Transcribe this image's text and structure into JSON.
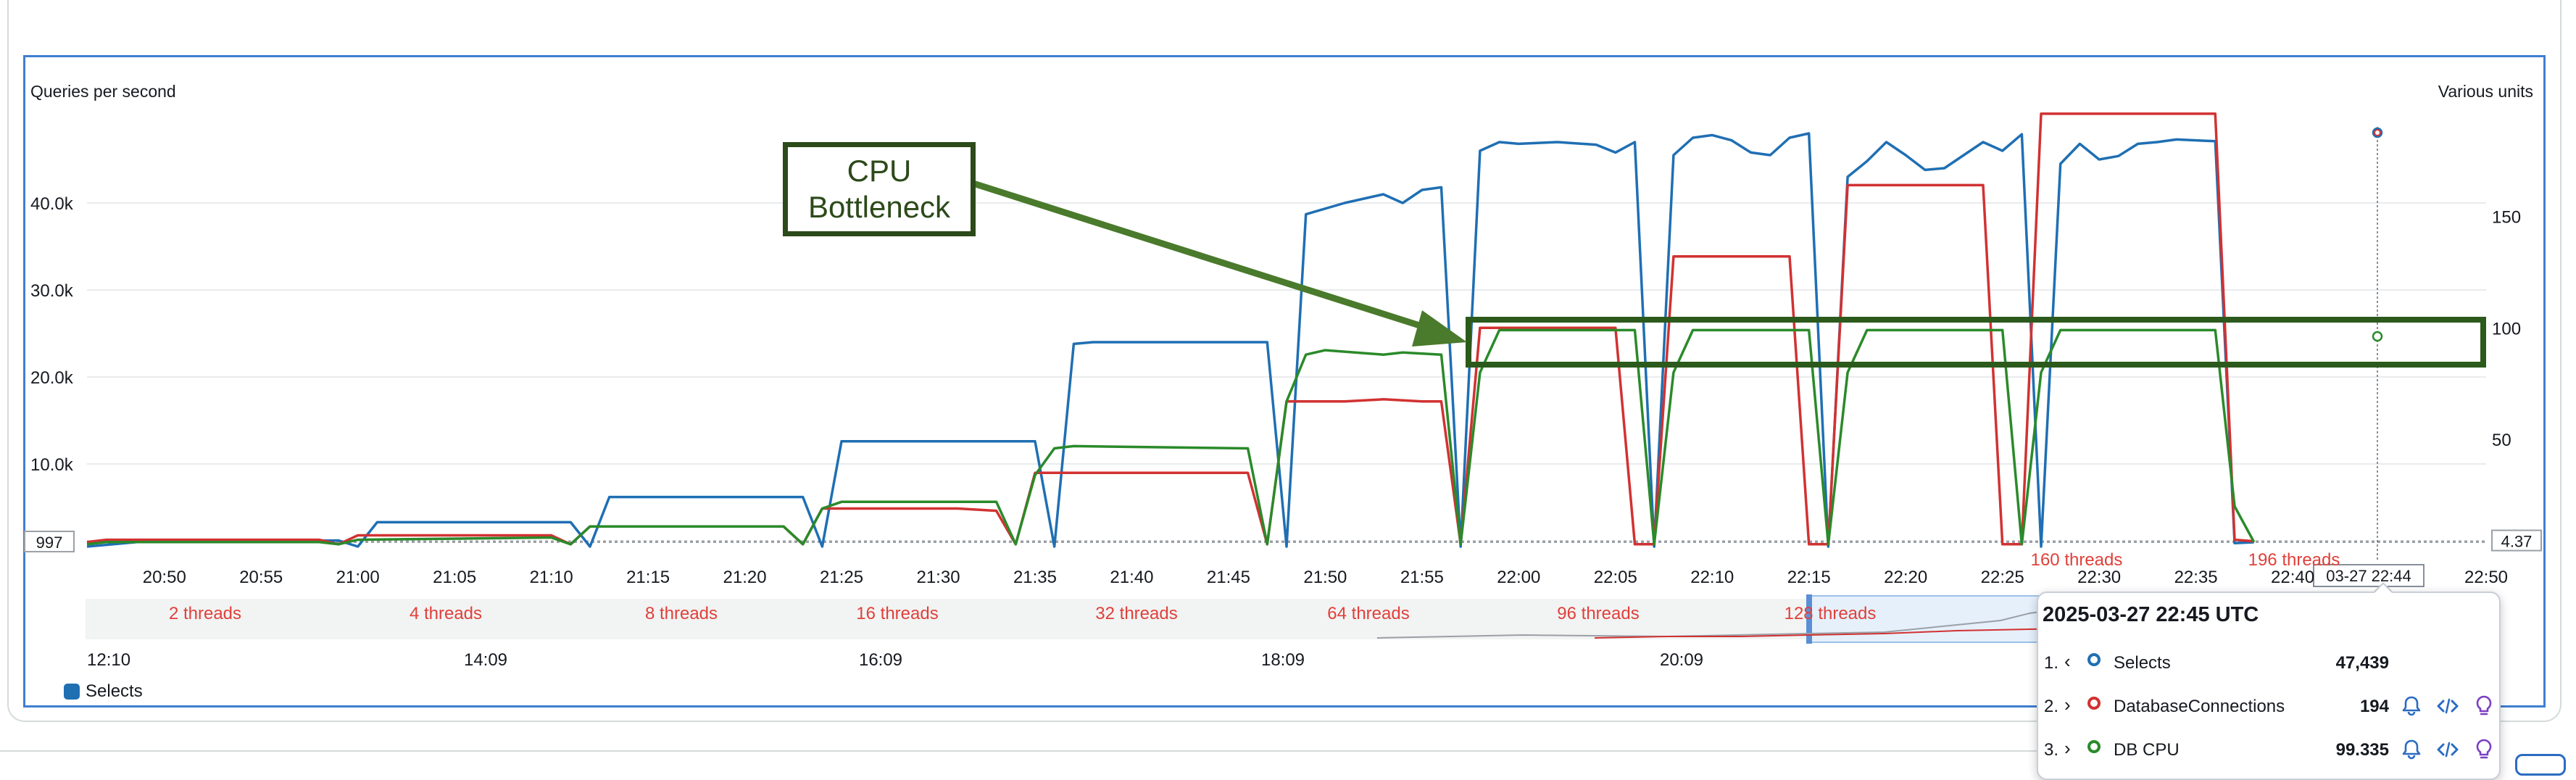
{
  "chart_data": {
    "type": "line",
    "title": "",
    "ylabel_left": "Queries per second",
    "ylabel_right": "Various units",
    "y_left_ticks": [
      "40.0k",
      "30.0k",
      "20.0k",
      "10.0k"
    ],
    "y_left_tick_values": [
      40000,
      30000,
      20000,
      10000
    ],
    "y_right_ticks": [
      "150",
      "100",
      "50"
    ],
    "y_right_tick_values": [
      150,
      100,
      50
    ],
    "ylim_left": [
      0,
      50000
    ],
    "ylim_right": [
      0,
      195
    ],
    "x_ticks": [
      "20:50",
      "20:55",
      "21:00",
      "21:05",
      "21:10",
      "21:15",
      "21:20",
      "21:25",
      "21:30",
      "21:35",
      "21:40",
      "21:45",
      "21:50",
      "21:55",
      "22:00",
      "22:05",
      "22:10",
      "22:15",
      "22:20",
      "22:25",
      "22:30",
      "22:35",
      "22:40",
      "22:50"
    ],
    "x_range": [
      "20:46",
      "22:50"
    ],
    "left_min_marker": "997",
    "right_min_marker": "4.37",
    "hover_time_label": "03-27 22:44",
    "thread_labels": [
      "2 threads",
      "4 threads",
      "8 threads",
      "16 threads",
      "32 threads",
      "64 threads",
      "96 threads",
      "128 threads",
      "160 threads",
      "196 threads"
    ],
    "navigator_ticks": [
      "12:10",
      "14:09",
      "16:09",
      "18:09",
      "20:09"
    ],
    "series": [
      {
        "name": "Selects",
        "axis": "left",
        "color": "#1f6fb3",
        "points": [
          [
            "20:46",
            500
          ],
          [
            "20:47",
            700
          ],
          [
            "20:49",
            1100
          ],
          [
            "20:59",
            1200
          ],
          [
            "21:00",
            500
          ],
          [
            "21:01",
            3300
          ],
          [
            "21:11",
            3300
          ],
          [
            "21:12",
            500
          ],
          [
            "21:13",
            6200
          ],
          [
            "21:23",
            6200
          ],
          [
            "21:24",
            500
          ],
          [
            "21:25",
            12600
          ],
          [
            "21:35",
            12600
          ],
          [
            "21:36",
            500
          ],
          [
            "21:37",
            23800
          ],
          [
            "21:38",
            24000
          ],
          [
            "21:47",
            24000
          ],
          [
            "21:48",
            500
          ],
          [
            "21:49",
            38700
          ],
          [
            "21:51",
            40000
          ],
          [
            "21:53",
            41000
          ],
          [
            "21:54",
            40000
          ],
          [
            "21:55",
            41500
          ],
          [
            "21:56",
            41800
          ],
          [
            "21:57",
            500
          ],
          [
            "21:58",
            46000
          ],
          [
            "21:59",
            47000
          ],
          [
            "22:00",
            46800
          ],
          [
            "22:02",
            47000
          ],
          [
            "22:04",
            46700
          ],
          [
            "22:05",
            45800
          ],
          [
            "22:06",
            47000
          ],
          [
            "22:07",
            500
          ],
          [
            "22:08",
            45500
          ],
          [
            "22:09",
            47500
          ],
          [
            "22:10",
            47800
          ],
          [
            "22:11",
            47200
          ],
          [
            "22:12",
            45800
          ],
          [
            "22:13",
            45500
          ],
          [
            "22:14",
            47500
          ],
          [
            "22:15",
            48000
          ],
          [
            "22:16",
            500
          ],
          [
            "22:17",
            43000
          ],
          [
            "22:18",
            44800
          ],
          [
            "22:19",
            47000
          ],
          [
            "22:20",
            45500
          ],
          [
            "22:21",
            43800
          ],
          [
            "22:22",
            44000
          ],
          [
            "22:23",
            45500
          ],
          [
            "22:24",
            47000
          ],
          [
            "22:25",
            46000
          ],
          [
            "22:26",
            47900
          ],
          [
            "22:27",
            500
          ],
          [
            "22:28",
            44500
          ],
          [
            "22:29",
            46800
          ],
          [
            "22:30",
            45000
          ],
          [
            "22:31",
            45400
          ],
          [
            "22:32",
            46800
          ],
          [
            "22:33",
            47000
          ],
          [
            "22:34",
            47300
          ],
          [
            "22:35",
            47200
          ],
          [
            "22:36",
            47100
          ],
          [
            "22:37",
            900
          ],
          [
            "22:38",
            997
          ]
        ]
      },
      {
        "name": "DatabaseConnections",
        "axis": "right",
        "color": "#d13232",
        "points": [
          [
            "20:46",
            4
          ],
          [
            "20:47",
            5
          ],
          [
            "20:58",
            5
          ],
          [
            "20:59",
            3
          ],
          [
            "21:00",
            7
          ],
          [
            "21:10",
            7
          ],
          [
            "21:11",
            3
          ],
          [
            "21:12",
            11
          ],
          [
            "21:22",
            11
          ],
          [
            "21:23",
            3
          ],
          [
            "21:24",
            19
          ],
          [
            "21:31",
            19
          ],
          [
            "21:33",
            18
          ],
          [
            "21:34",
            3
          ],
          [
            "21:35",
            35
          ],
          [
            "21:46",
            35
          ],
          [
            "21:47",
            3
          ],
          [
            "21:48",
            67
          ],
          [
            "21:51",
            67
          ],
          [
            "21:53",
            68
          ],
          [
            "21:55",
            67
          ],
          [
            "21:56",
            67
          ],
          [
            "21:57",
            3
          ],
          [
            "21:58",
            100
          ],
          [
            "22:04",
            100
          ],
          [
            "22:05",
            100
          ],
          [
            "22:06",
            3
          ],
          [
            "22:07",
            3
          ],
          [
            "22:08",
            132
          ],
          [
            "22:14",
            132
          ],
          [
            "22:15",
            3
          ],
          [
            "22:16",
            3
          ],
          [
            "22:17",
            164
          ],
          [
            "22:24",
            164
          ],
          [
            "22:25",
            3
          ],
          [
            "22:26",
            3
          ],
          [
            "22:27",
            196
          ],
          [
            "22:36",
            196
          ],
          [
            "22:37",
            5
          ],
          [
            "22:38",
            4.37
          ]
        ]
      },
      {
        "name": "DB CPU",
        "axis": "right",
        "color": "#2a8a2a",
        "points": [
          [
            "20:46",
            3
          ],
          [
            "20:47",
            4
          ],
          [
            "20:58",
            4
          ],
          [
            "20:59",
            3
          ],
          [
            "21:00",
            5
          ],
          [
            "21:10",
            6
          ],
          [
            "21:11",
            3
          ],
          [
            "21:12",
            11
          ],
          [
            "21:22",
            11
          ],
          [
            "21:23",
            3
          ],
          [
            "21:24",
            19
          ],
          [
            "21:25",
            22
          ],
          [
            "21:33",
            22
          ],
          [
            "21:34",
            3
          ],
          [
            "21:35",
            34
          ],
          [
            "21:36",
            46
          ],
          [
            "21:37",
            47
          ],
          [
            "21:46",
            46
          ],
          [
            "21:47",
            3
          ],
          [
            "21:48",
            67
          ],
          [
            "21:49",
            88
          ],
          [
            "21:50",
            90
          ],
          [
            "21:53",
            88
          ],
          [
            "21:54",
            89
          ],
          [
            "21:56",
            88
          ],
          [
            "21:57",
            3
          ],
          [
            "21:58",
            80
          ],
          [
            "21:59",
            99
          ],
          [
            "22:01",
            99
          ],
          [
            "22:06",
            99
          ],
          [
            "22:07",
            3
          ],
          [
            "22:08",
            80
          ],
          [
            "22:09",
            99
          ],
          [
            "22:15",
            99
          ],
          [
            "22:16",
            3
          ],
          [
            "22:17",
            80
          ],
          [
            "22:18",
            99
          ],
          [
            "22:25",
            99
          ],
          [
            "22:26",
            3
          ],
          [
            "22:27",
            80
          ],
          [
            "22:28",
            99
          ],
          [
            "22:36",
            99
          ],
          [
            "22:37",
            20
          ],
          [
            "22:38",
            4
          ]
        ]
      }
    ],
    "annotation": {
      "text_line1": "CPU",
      "text_line2": "Bottleneck"
    }
  },
  "tooltip": {
    "title": "2025-03-27 22:45 UTC",
    "rows": [
      {
        "index": "1.",
        "chevron": "‹",
        "name": "Selects",
        "value": "47,439",
        "color": "#1f6fb3",
        "has_actions": false
      },
      {
        "index": "2.",
        "chevron": "›",
        "name": "DatabaseConnections",
        "value": "194",
        "color": "#d13232",
        "has_actions": true
      },
      {
        "index": "3.",
        "chevron": "›",
        "name": "DB CPU",
        "value": "99.335",
        "color": "#2a8a2a",
        "has_actions": true
      }
    ],
    "icons": {
      "alarm": "bell-icon",
      "code": "code-icon",
      "insight": "lightbulb-icon"
    }
  },
  "legend": {
    "items": [
      {
        "label": "Selects",
        "color": "#1f6fb3"
      }
    ]
  }
}
